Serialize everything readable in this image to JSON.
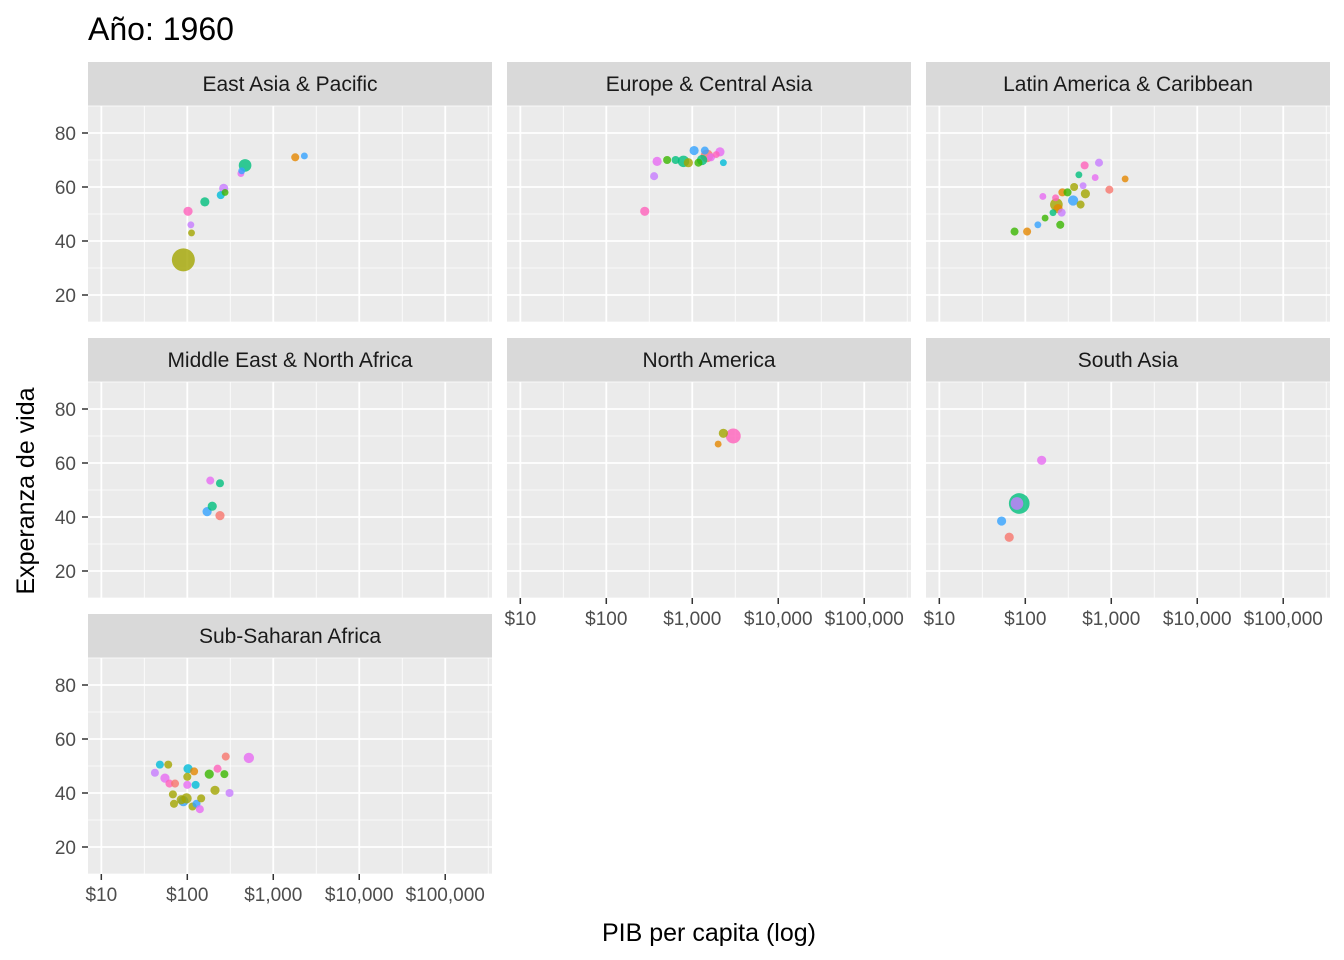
{
  "chart_data": {
    "type": "scatter",
    "title": "Año: 1960",
    "xlabel": "PIB per capita (log)",
    "ylabel": "Experanza de vida",
    "x_scale": "log10",
    "xlim": [
      7,
      350000
    ],
    "ylim": [
      10,
      90
    ],
    "x_ticks": [
      {
        "value": 10,
        "label": "$10"
      },
      {
        "value": 100,
        "label": "$100"
      },
      {
        "value": 1000,
        "label": "$1,000"
      },
      {
        "value": 10000,
        "label": "$10,000"
      },
      {
        "value": 100000,
        "label": "$100,000"
      }
    ],
    "y_ticks": [
      {
        "value": 20,
        "label": "20"
      },
      {
        "value": 40,
        "label": "40"
      },
      {
        "value": 60,
        "label": "60"
      },
      {
        "value": 80,
        "label": "80"
      }
    ],
    "grid": true,
    "legend": "none",
    "colors": {
      "red": "#F8766D",
      "orange": "#E58700",
      "olive": "#A3A500",
      "green": "#39B600",
      "teal": "#00BF7D",
      "cyan": "#00BCD8",
      "blue": "#35A2FF",
      "purple": "#C77CFF",
      "magenta": "#E76BF3",
      "pink": "#FF62BC"
    },
    "facets": [
      {
        "name": "East Asia & Pacific",
        "points": [
          {
            "x": 90,
            "y": 33,
            "size": 10,
            "color": "olive"
          },
          {
            "x": 112,
            "y": 43,
            "size": 3,
            "color": "olive"
          },
          {
            "x": 110,
            "y": 46,
            "size": 3,
            "color": "purple"
          },
          {
            "x": 102,
            "y": 51,
            "size": 4,
            "color": "pink"
          },
          {
            "x": 160,
            "y": 54.5,
            "size": 4,
            "color": "teal"
          },
          {
            "x": 245,
            "y": 57,
            "size": 3.5,
            "color": "cyan"
          },
          {
            "x": 275,
            "y": 58,
            "size": 3,
            "color": "green"
          },
          {
            "x": 265,
            "y": 59.5,
            "size": 4,
            "color": "purple"
          },
          {
            "x": 420,
            "y": 65,
            "size": 3,
            "color": "magenta"
          },
          {
            "x": 430,
            "y": 66,
            "size": 3,
            "color": "blue"
          },
          {
            "x": 470,
            "y": 68,
            "size": 5.5,
            "color": "teal"
          },
          {
            "x": 1800,
            "y": 71,
            "size": 3.5,
            "color": "orange"
          },
          {
            "x": 2300,
            "y": 71.5,
            "size": 3,
            "color": "blue"
          }
        ]
      },
      {
        "name": "Europe & Central Asia",
        "points": [
          {
            "x": 280,
            "y": 51,
            "size": 4,
            "color": "pink"
          },
          {
            "x": 360,
            "y": 64,
            "size": 3.5,
            "color": "purple"
          },
          {
            "x": 390,
            "y": 69.5,
            "size": 4,
            "color": "magenta"
          },
          {
            "x": 510,
            "y": 70,
            "size": 3.5,
            "color": "green"
          },
          {
            "x": 640,
            "y": 70,
            "size": 3.5,
            "color": "teal"
          },
          {
            "x": 790,
            "y": 69.5,
            "size": 5,
            "color": "teal"
          },
          {
            "x": 900,
            "y": 69,
            "size": 4,
            "color": "olive"
          },
          {
            "x": 1050,
            "y": 73.5,
            "size": 4,
            "color": "blue"
          },
          {
            "x": 1180,
            "y": 69,
            "size": 3.5,
            "color": "green"
          },
          {
            "x": 1300,
            "y": 70,
            "size": 4.5,
            "color": "teal"
          },
          {
            "x": 1400,
            "y": 73.5,
            "size": 3.5,
            "color": "blue"
          },
          {
            "x": 1480,
            "y": 71.5,
            "size": 5.5,
            "color": "red"
          },
          {
            "x": 1650,
            "y": 71,
            "size": 3.5,
            "color": "magenta"
          },
          {
            "x": 1900,
            "y": 72,
            "size": 3,
            "color": "pink"
          },
          {
            "x": 2100,
            "y": 73,
            "size": 4,
            "color": "magenta"
          },
          {
            "x": 2300,
            "y": 69,
            "size": 3,
            "color": "cyan"
          }
        ]
      },
      {
        "name": "Latin America & Caribbean",
        "points": [
          {
            "x": 75,
            "y": 43.5,
            "size": 3.5,
            "color": "green"
          },
          {
            "x": 105,
            "y": 43.5,
            "size": 3.5,
            "color": "orange"
          },
          {
            "x": 140,
            "y": 46,
            "size": 3,
            "color": "blue"
          },
          {
            "x": 170,
            "y": 48.5,
            "size": 3,
            "color": "green"
          },
          {
            "x": 210,
            "y": 50.5,
            "size": 3,
            "color": "teal"
          },
          {
            "x": 240,
            "y": 52,
            "size": 4,
            "color": "orange"
          },
          {
            "x": 255,
            "y": 46,
            "size": 3.5,
            "color": "green"
          },
          {
            "x": 230,
            "y": 53.5,
            "size": 5.5,
            "color": "olive"
          },
          {
            "x": 225,
            "y": 56,
            "size": 3,
            "color": "pink"
          },
          {
            "x": 265,
            "y": 50.5,
            "size": 3.5,
            "color": "purple"
          },
          {
            "x": 160,
            "y": 56.5,
            "size": 3,
            "color": "magenta"
          },
          {
            "x": 270,
            "y": 58,
            "size": 3.5,
            "color": "orange"
          },
          {
            "x": 310,
            "y": 58,
            "size": 3.5,
            "color": "green"
          },
          {
            "x": 360,
            "y": 55,
            "size": 4.5,
            "color": "blue"
          },
          {
            "x": 370,
            "y": 60,
            "size": 3.5,
            "color": "olive"
          },
          {
            "x": 420,
            "y": 64.5,
            "size": 3,
            "color": "teal"
          },
          {
            "x": 440,
            "y": 53.5,
            "size": 3.5,
            "color": "olive"
          },
          {
            "x": 470,
            "y": 60.5,
            "size": 3,
            "color": "purple"
          },
          {
            "x": 500,
            "y": 57.5,
            "size": 4,
            "color": "olive"
          },
          {
            "x": 490,
            "y": 68,
            "size": 3.5,
            "color": "pink"
          },
          {
            "x": 650,
            "y": 63.5,
            "size": 3,
            "color": "magenta"
          },
          {
            "x": 720,
            "y": 69,
            "size": 3.5,
            "color": "purple"
          },
          {
            "x": 950,
            "y": 59,
            "size": 3.5,
            "color": "red"
          },
          {
            "x": 1450,
            "y": 63,
            "size": 3,
            "color": "orange"
          }
        ]
      },
      {
        "name": "Middle East & North Africa",
        "points": [
          {
            "x": 170,
            "y": 42,
            "size": 4,
            "color": "blue"
          },
          {
            "x": 195,
            "y": 44,
            "size": 4,
            "color": "teal"
          },
          {
            "x": 240,
            "y": 40.5,
            "size": 4,
            "color": "red"
          },
          {
            "x": 185,
            "y": 53.5,
            "size": 3.5,
            "color": "magenta"
          },
          {
            "x": 240,
            "y": 52.5,
            "size": 3.5,
            "color": "teal"
          }
        ]
      },
      {
        "name": "North America",
        "points": [
          {
            "x": 2000,
            "y": 67,
            "size": 3,
            "color": "orange"
          },
          {
            "x": 2300,
            "y": 71,
            "size": 4,
            "color": "olive"
          },
          {
            "x": 3000,
            "y": 70,
            "size": 6.5,
            "color": "pink"
          }
        ]
      },
      {
        "name": "South Asia",
        "points": [
          {
            "x": 53,
            "y": 38.5,
            "size": 4,
            "color": "blue"
          },
          {
            "x": 65,
            "y": 32.5,
            "size": 4,
            "color": "red"
          },
          {
            "x": 85,
            "y": 45,
            "size": 9,
            "color": "teal"
          },
          {
            "x": 80,
            "y": 45,
            "size": 5.5,
            "color": "purple"
          },
          {
            "x": 155,
            "y": 61,
            "size": 4,
            "color": "magenta"
          }
        ]
      },
      {
        "name": "Sub-Saharan Africa",
        "points": [
          {
            "x": 42,
            "y": 47.5,
            "size": 3.5,
            "color": "purple"
          },
          {
            "x": 48,
            "y": 50.5,
            "size": 3.5,
            "color": "cyan"
          },
          {
            "x": 55,
            "y": 45.5,
            "size": 4,
            "color": "magenta"
          },
          {
            "x": 60,
            "y": 50.5,
            "size": 3.5,
            "color": "olive"
          },
          {
            "x": 62,
            "y": 43.5,
            "size": 3.5,
            "color": "pink"
          },
          {
            "x": 68,
            "y": 39.5,
            "size": 3.5,
            "color": "olive"
          },
          {
            "x": 72,
            "y": 43.5,
            "size": 3.5,
            "color": "red"
          },
          {
            "x": 70,
            "y": 36,
            "size": 3.5,
            "color": "olive"
          },
          {
            "x": 85,
            "y": 37.5,
            "size": 4,
            "color": "olive"
          },
          {
            "x": 90,
            "y": 37,
            "size": 4.5,
            "color": "blue"
          },
          {
            "x": 98,
            "y": 38,
            "size": 4.5,
            "color": "olive"
          },
          {
            "x": 100,
            "y": 43,
            "size": 3.5,
            "color": "magenta"
          },
          {
            "x": 100,
            "y": 46,
            "size": 3.5,
            "color": "olive"
          },
          {
            "x": 102,
            "y": 49,
            "size": 4,
            "color": "cyan"
          },
          {
            "x": 115,
            "y": 35,
            "size": 3.5,
            "color": "olive"
          },
          {
            "x": 120,
            "y": 48,
            "size": 3.5,
            "color": "orange"
          },
          {
            "x": 125,
            "y": 43,
            "size": 3.5,
            "color": "cyan"
          },
          {
            "x": 128,
            "y": 36,
            "size": 3.5,
            "color": "blue"
          },
          {
            "x": 140,
            "y": 34,
            "size": 3.5,
            "color": "magenta"
          },
          {
            "x": 145,
            "y": 38,
            "size": 3.5,
            "color": "olive"
          },
          {
            "x": 180,
            "y": 47,
            "size": 4,
            "color": "green"
          },
          {
            "x": 210,
            "y": 41,
            "size": 4,
            "color": "olive"
          },
          {
            "x": 225,
            "y": 49,
            "size": 3.5,
            "color": "pink"
          },
          {
            "x": 270,
            "y": 47,
            "size": 3.5,
            "color": "green"
          },
          {
            "x": 280,
            "y": 53.5,
            "size": 3.5,
            "color": "red"
          },
          {
            "x": 310,
            "y": 40,
            "size": 3.5,
            "color": "purple"
          },
          {
            "x": 520,
            "y": 53,
            "size": 4.5,
            "color": "magenta"
          }
        ]
      }
    ]
  }
}
